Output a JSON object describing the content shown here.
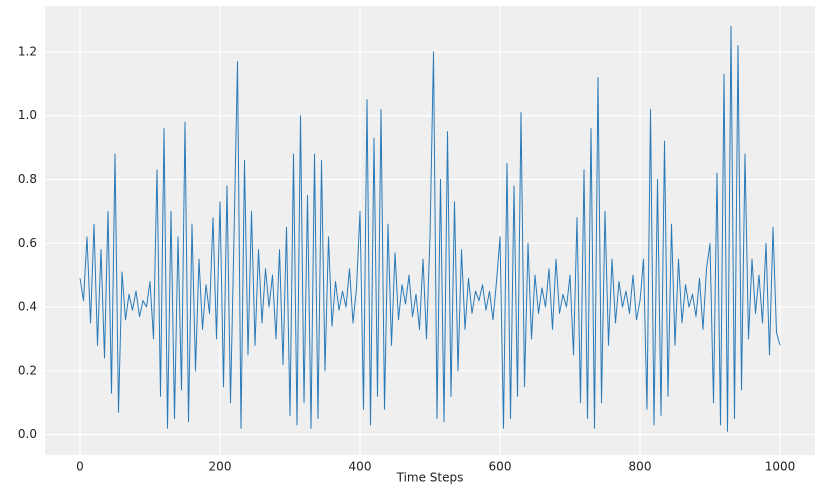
{
  "chart_data": {
    "type": "line",
    "x_label": "Time Steps",
    "x": [
      0,
      5,
      10,
      15,
      20,
      25,
      30,
      35,
      40,
      45,
      50,
      55,
      60,
      65,
      70,
      75,
      80,
      85,
      90,
      95,
      100,
      105,
      110,
      115,
      120,
      125,
      130,
      135,
      140,
      145,
      150,
      155,
      160,
      165,
      170,
      175,
      180,
      185,
      190,
      195,
      200,
      205,
      210,
      215,
      220,
      225,
      230,
      235,
      240,
      245,
      250,
      255,
      260,
      265,
      270,
      275,
      280,
      285,
      290,
      295,
      300,
      305,
      310,
      315,
      320,
      325,
      330,
      335,
      340,
      345,
      350,
      355,
      360,
      365,
      370,
      375,
      380,
      385,
      390,
      395,
      400,
      405,
      410,
      415,
      420,
      425,
      430,
      435,
      440,
      445,
      450,
      455,
      460,
      465,
      470,
      475,
      480,
      485,
      490,
      495,
      500,
      505,
      510,
      515,
      520,
      525,
      530,
      535,
      540,
      545,
      550,
      555,
      560,
      565,
      570,
      575,
      580,
      585,
      590,
      595,
      600,
      605,
      610,
      615,
      620,
      625,
      630,
      635,
      640,
      645,
      650,
      655,
      660,
      665,
      670,
      675,
      680,
      685,
      690,
      695,
      700,
      705,
      710,
      715,
      720,
      725,
      730,
      735,
      740,
      745,
      750,
      755,
      760,
      765,
      770,
      775,
      780,
      785,
      790,
      795,
      800,
      805,
      810,
      815,
      820,
      825,
      830,
      835,
      840,
      845,
      850,
      855,
      860,
      865,
      870,
      875,
      880,
      885,
      890,
      895,
      900,
      905,
      910,
      915,
      920,
      925,
      930,
      935,
      940,
      945,
      950,
      955,
      960,
      965,
      970,
      975,
      980,
      985,
      990,
      995,
      1000
    ],
    "series": [
      {
        "color": "#2a7ab8",
        "values": [
          0.49,
          0.42,
          0.62,
          0.35,
          0.66,
          0.28,
          0.58,
          0.24,
          0.7,
          0.13,
          0.88,
          0.07,
          0.51,
          0.36,
          0.44,
          0.39,
          0.45,
          0.37,
          0.42,
          0.4,
          0.48,
          0.3,
          0.83,
          0.12,
          0.96,
          0.02,
          0.7,
          0.05,
          0.62,
          0.14,
          0.98,
          0.04,
          0.66,
          0.2,
          0.55,
          0.33,
          0.47,
          0.38,
          0.68,
          0.3,
          0.73,
          0.15,
          0.78,
          0.1,
          0.62,
          1.17,
          0.02,
          0.86,
          0.25,
          0.7,
          0.28,
          0.58,
          0.35,
          0.52,
          0.4,
          0.5,
          0.3,
          0.58,
          0.22,
          0.65,
          0.06,
          0.88,
          0.03,
          1.0,
          0.1,
          0.75,
          0.02,
          0.88,
          0.05,
          0.86,
          0.2,
          0.62,
          0.34,
          0.48,
          0.39,
          0.45,
          0.4,
          0.52,
          0.35,
          0.46,
          0.7,
          0.08,
          1.05,
          0.03,
          0.93,
          0.12,
          1.02,
          0.08,
          0.66,
          0.28,
          0.57,
          0.36,
          0.47,
          0.41,
          0.5,
          0.37,
          0.44,
          0.33,
          0.55,
          0.3,
          0.62,
          1.2,
          0.05,
          0.8,
          0.04,
          0.95,
          0.12,
          0.73,
          0.2,
          0.58,
          0.33,
          0.49,
          0.38,
          0.45,
          0.42,
          0.47,
          0.39,
          0.45,
          0.36,
          0.48,
          0.62,
          0.02,
          0.85,
          0.05,
          0.78,
          0.12,
          1.01,
          0.15,
          0.6,
          0.3,
          0.5,
          0.38,
          0.46,
          0.4,
          0.52,
          0.33,
          0.55,
          0.38,
          0.44,
          0.4,
          0.5,
          0.25,
          0.68,
          0.1,
          0.83,
          0.05,
          0.96,
          0.02,
          1.12,
          0.1,
          0.7,
          0.28,
          0.55,
          0.35,
          0.48,
          0.4,
          0.45,
          0.38,
          0.5,
          0.36,
          0.42,
          0.55,
          0.08,
          1.02,
          0.03,
          0.8,
          0.06,
          0.92,
          0.12,
          0.66,
          0.28,
          0.55,
          0.35,
          0.47,
          0.4,
          0.44,
          0.37,
          0.49,
          0.33,
          0.52,
          0.6,
          0.1,
          0.82,
          0.03,
          1.13,
          0.01,
          1.28,
          0.05,
          1.22,
          0.14,
          0.88,
          0.3,
          0.55,
          0.38,
          0.5,
          0.35,
          0.6,
          0.25,
          0.65,
          0.32,
          0.28
        ]
      }
    ],
    "xlim": [
      -50,
      1050
    ],
    "xticks": [
      0,
      200,
      400,
      600,
      800,
      1000
    ],
    "ylim": [
      -0.064,
      1.344
    ],
    "yticks": [
      {
        "value": 0,
        "label": "0.0"
      },
      0.2,
      0.4,
      0.6,
      0.8,
      {
        "value": 1,
        "label": "1.0"
      },
      1.2
    ],
    "grid": true
  }
}
